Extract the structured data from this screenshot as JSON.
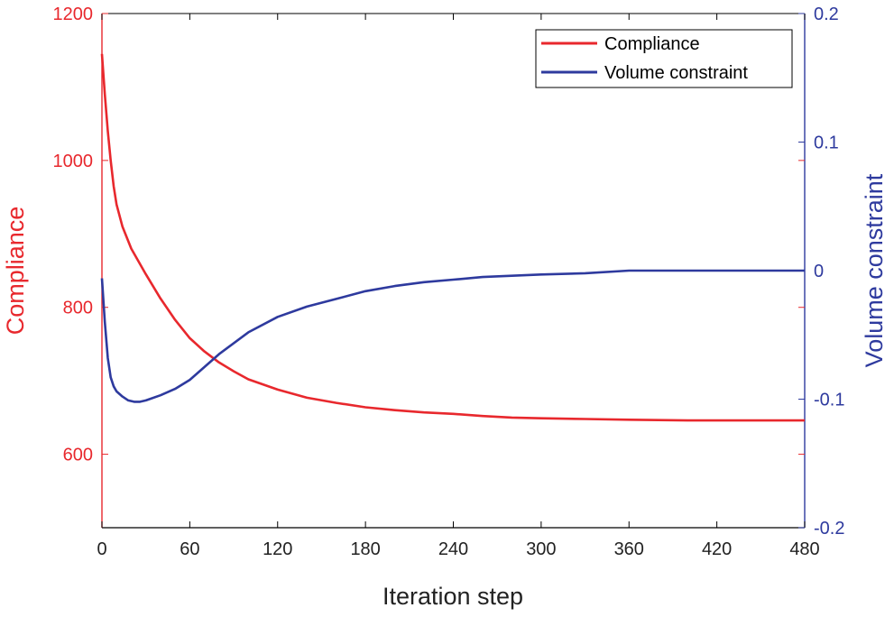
{
  "chart_data": {
    "type": "line",
    "xlabel": "Iteration step",
    "ylabel": "Compliance",
    "ylabel_right": "Volume constraint",
    "xlim": [
      0,
      480
    ],
    "ylim": [
      500,
      1200
    ],
    "ylim_right": [
      -0.2,
      0.2
    ],
    "x_ticks": [
      "0",
      "60",
      "120",
      "180",
      "240",
      "300",
      "360",
      "420",
      "480"
    ],
    "y_ticks": [
      "600",
      "800",
      "1000",
      "1200"
    ],
    "y_ticks_right": [
      "-0.2",
      "-0.1",
      "0",
      "0.1",
      "0.2"
    ],
    "grid": false,
    "legend_position": "top-right",
    "colors": {
      "compliance": "#e8282d",
      "volume": "#2e3a9e"
    },
    "series": [
      {
        "name": "Compliance",
        "axis": "left",
        "color": "#e8282d",
        "x": [
          0,
          2,
          4,
          6,
          8,
          10,
          14,
          20,
          30,
          40,
          50,
          60,
          70,
          80,
          90,
          100,
          120,
          140,
          160,
          180,
          200,
          220,
          240,
          260,
          280,
          300,
          330,
          360,
          400,
          440,
          480
        ],
        "y": [
          1145,
          1090,
          1040,
          1000,
          965,
          940,
          910,
          880,
          845,
          812,
          783,
          758,
          740,
          725,
          713,
          702,
          688,
          677,
          670,
          664,
          660,
          657,
          655,
          652,
          650,
          649,
          648,
          647,
          646,
          646,
          646
        ]
      },
      {
        "name": "Volume constraint",
        "axis": "right",
        "color": "#2e3a9e",
        "x": [
          0,
          2,
          4,
          6,
          8,
          10,
          14,
          18,
          22,
          26,
          30,
          40,
          50,
          60,
          70,
          80,
          100,
          120,
          140,
          160,
          180,
          200,
          220,
          240,
          260,
          280,
          300,
          330,
          360,
          400,
          440,
          480
        ],
        "y": [
          -0.006,
          -0.04,
          -0.068,
          -0.083,
          -0.09,
          -0.094,
          -0.098,
          -0.101,
          -0.102,
          -0.102,
          -0.101,
          -0.097,
          -0.092,
          -0.085,
          -0.075,
          -0.065,
          -0.048,
          -0.036,
          -0.028,
          -0.022,
          -0.016,
          -0.012,
          -0.009,
          -0.007,
          -0.005,
          -0.004,
          -0.003,
          -0.002,
          0.0,
          0.0,
          0.0,
          0.0
        ]
      }
    ]
  }
}
